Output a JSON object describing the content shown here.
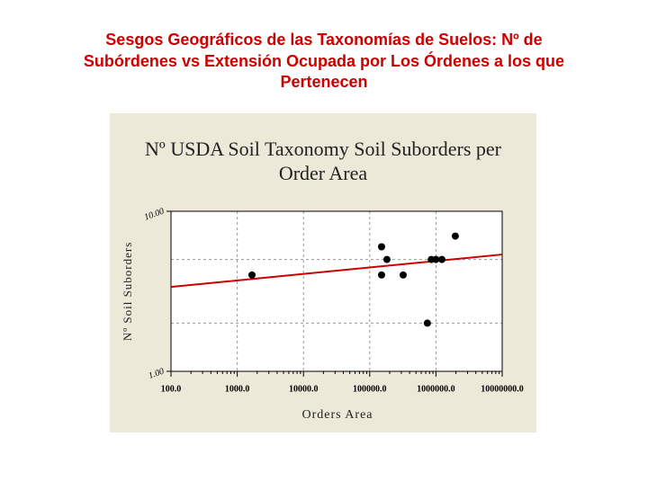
{
  "slide_title": [
    "Sesgos Geográficos de las Taxonomías de Suelos: Nº de",
    "Subórdenes vs Extensión Ocupada por Los Órdenes a los que",
    "Pertenecen"
  ],
  "chart_data": {
    "type": "scatter",
    "title": [
      "Nº USDA Soil Taxonomy Soil Suborders per",
      "Order Area"
    ],
    "x_label": "Orders Area",
    "y_label": "Nº Soil Suborders",
    "x": [
      1670,
      151000,
      151000,
      182000,
      320000,
      742000,
      850000,
      1000000,
      1230000,
      1960000
    ],
    "values": [
      4,
      6,
      4,
      5,
      4,
      2,
      5,
      5,
      5,
      7
    ],
    "color": "#000000",
    "trendline": {
      "x": [
        100,
        10000000
      ],
      "values": [
        3.37,
        5.37
      ],
      "color": "#cc0000"
    },
    "log_x": true,
    "log_y": true,
    "xlim": [
      100,
      10000000
    ],
    "ylim": [
      1,
      10
    ],
    "xticks": [
      {
        "value": 100,
        "label": "100.0"
      },
      {
        "value": 1000,
        "label": "1000.0"
      },
      {
        "value": 10000,
        "label": "10000.0"
      },
      {
        "value": 100000,
        "label": "100000.0"
      },
      {
        "value": 1000000,
        "label": "1000000.0"
      },
      {
        "value": 10000000,
        "label": "10000000.0"
      }
    ],
    "yticks": [
      {
        "value": 1,
        "label": "1.00"
      },
      {
        "value": 10,
        "label": "10.00"
      }
    ],
    "y_gridlines": [
      2,
      5
    ],
    "grid": true
  }
}
